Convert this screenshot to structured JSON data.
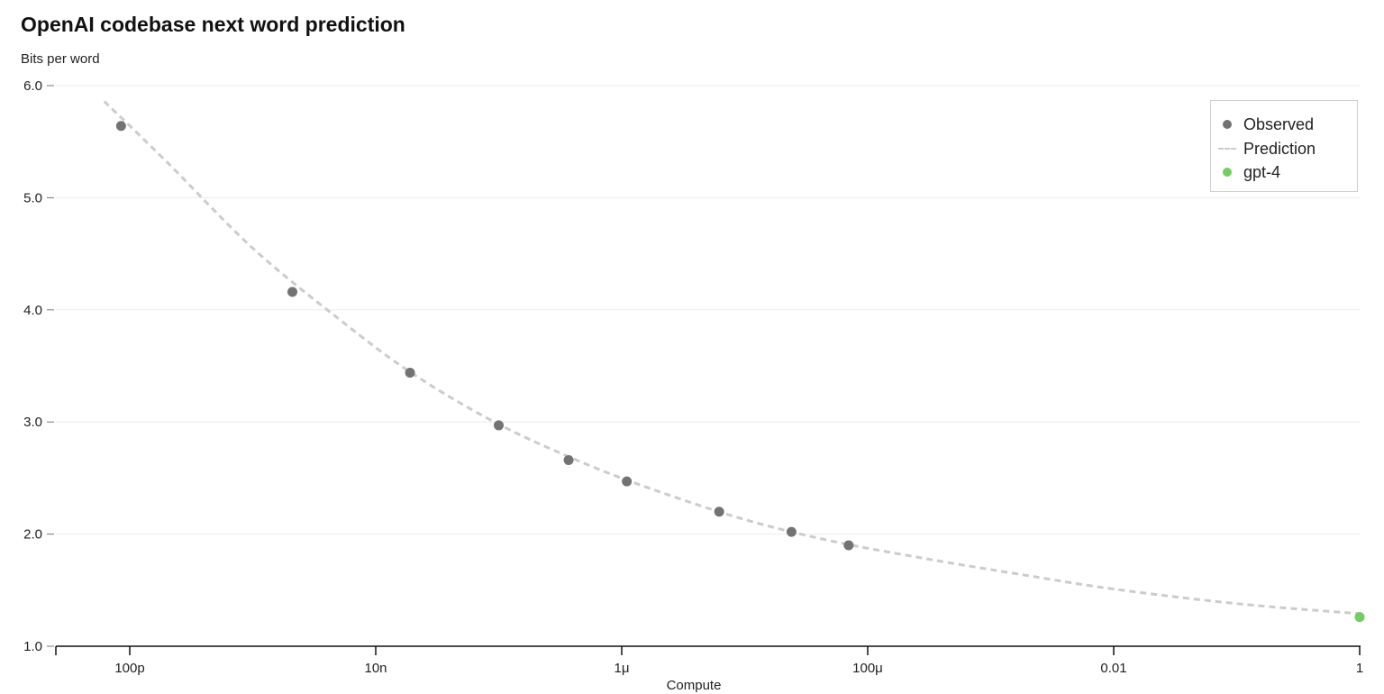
{
  "chart_data": {
    "type": "scatter",
    "title": "OpenAI codebase next word prediction",
    "ylabel": "Bits per word",
    "xlabel": "Compute",
    "x_scale": "log",
    "xlim": [
      5e-11,
      1
    ],
    "ylim": [
      1.0,
      6.0
    ],
    "y_ticks": [
      {
        "value": 6.0,
        "label": "6.0"
      },
      {
        "value": 5.0,
        "label": "5.0"
      },
      {
        "value": 4.0,
        "label": "4.0"
      },
      {
        "value": 3.0,
        "label": "3.0"
      },
      {
        "value": 2.0,
        "label": "2.0"
      },
      {
        "value": 1.0,
        "label": "1.0"
      }
    ],
    "x_ticks": [
      {
        "value": 1e-10,
        "label": "100p"
      },
      {
        "value": 1e-08,
        "label": "10n"
      },
      {
        "value": 1e-06,
        "label": "1μ"
      },
      {
        "value": 0.0001,
        "label": "100μ"
      },
      {
        "value": 0.01,
        "label": "0.01"
      },
      {
        "value": 1,
        "label": "1"
      }
    ],
    "grid": "horizontal",
    "legend_position": "top-right",
    "series": [
      {
        "name": "Observed",
        "kind": "points",
        "color": "#737373",
        "points": [
          {
            "x": 8.5e-11,
            "y": 5.64
          },
          {
            "x": 2.1e-09,
            "y": 4.16
          },
          {
            "x": 1.9e-08,
            "y": 3.44
          },
          {
            "x": 1e-07,
            "y": 2.97
          },
          {
            "x": 3.7e-07,
            "y": 2.66
          },
          {
            "x": 1.1e-06,
            "y": 2.47
          },
          {
            "x": 6.2e-06,
            "y": 2.2
          },
          {
            "x": 2.4e-05,
            "y": 2.02
          },
          {
            "x": 7e-05,
            "y": 1.9
          }
        ]
      },
      {
        "name": "Prediction",
        "kind": "dashed-line",
        "color": "#cccccc",
        "points": [
          {
            "x": 6.2e-11,
            "y": 5.86
          },
          {
            "x": 2e-10,
            "y": 5.32
          },
          {
            "x": 1e-09,
            "y": 4.55
          },
          {
            "x": 5e-09,
            "y": 3.92
          },
          {
            "x": 2e-08,
            "y": 3.43
          },
          {
            "x": 1e-07,
            "y": 2.98
          },
          {
            "x": 5e-07,
            "y": 2.63
          },
          {
            "x": 2e-06,
            "y": 2.38
          },
          {
            "x": 1e-05,
            "y": 2.13
          },
          {
            "x": 5e-05,
            "y": 1.94
          },
          {
            "x": 0.0003,
            "y": 1.78
          },
          {
            "x": 0.002,
            "y": 1.63
          },
          {
            "x": 0.01,
            "y": 1.51
          },
          {
            "x": 0.1,
            "y": 1.38
          },
          {
            "x": 1,
            "y": 1.29
          }
        ]
      },
      {
        "name": "gpt-4",
        "kind": "points",
        "color": "#6fcf5f",
        "points": [
          {
            "x": 1,
            "y": 1.26
          }
        ]
      }
    ]
  }
}
